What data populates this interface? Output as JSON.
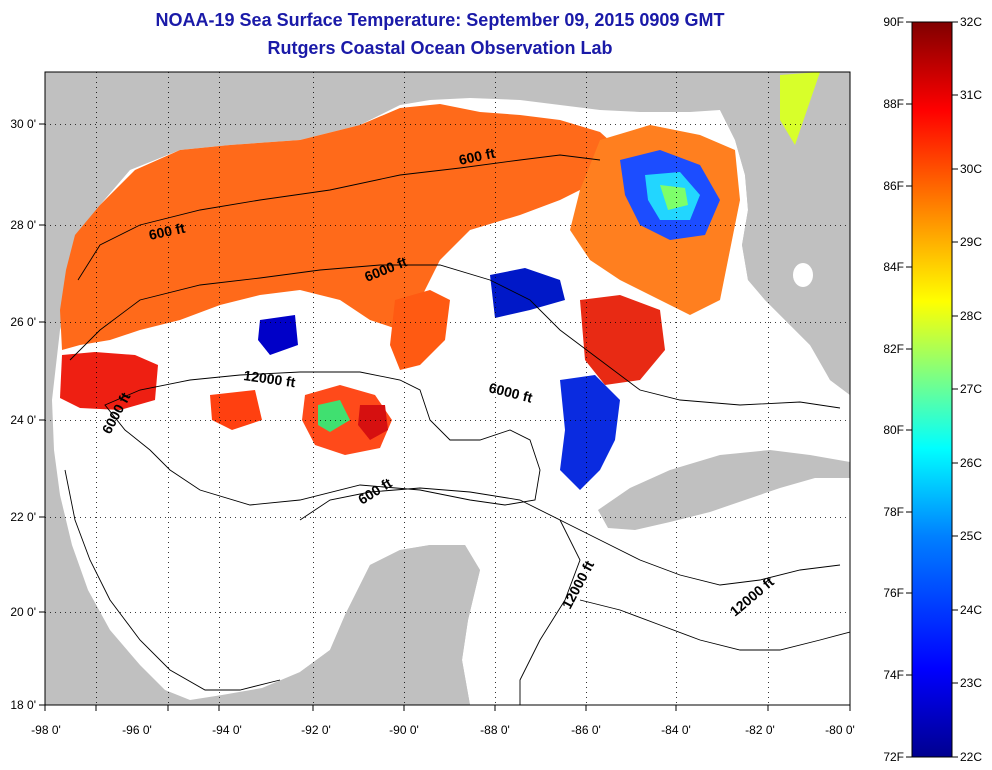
{
  "title": "NOAA-19 Sea Surface Temperature:  September 09, 2015 0909 GMT",
  "subtitle": "Rutgers Coastal Ocean Observation Lab",
  "axes": {
    "lon_ticks": [
      "-98 0'",
      "-96 0'",
      "-94 0'",
      "-92 0'",
      "-90 0'",
      "-88 0'",
      "-86 0'",
      "-84 0'",
      "-82 0'",
      "-80 0'"
    ],
    "lat_ticks": [
      "30 0'",
      "28 0'",
      "26 0'",
      "24 0'",
      "22 0'",
      "20 0'",
      "18 0'"
    ]
  },
  "contour_labels": [
    "600 ft",
    "600 ft",
    "6000 ft",
    "12000 ft",
    "6000 ft",
    "6000 ft",
    "600 ft",
    "12000 ft",
    "12000 ft"
  ],
  "colorbar": {
    "fahrenheit": [
      "90F",
      "88F",
      "86F",
      "84F",
      "82F",
      "80F",
      "78F",
      "76F",
      "74F",
      "72F"
    ],
    "celsius": [
      "32C",
      "31C",
      "30C",
      "29C",
      "28C",
      "27C",
      "26C",
      "25C",
      "24C",
      "23C",
      "22C"
    ],
    "colors": [
      "#00008f",
      "#0000ff",
      "#0080ff",
      "#00ffff",
      "#80ff80",
      "#ffff00",
      "#ff8000",
      "#ff0000",
      "#800000"
    ]
  },
  "colors": {
    "land": "#c0c0c0",
    "no_data_water": "#ffffff",
    "title": "#1a1aa8"
  }
}
